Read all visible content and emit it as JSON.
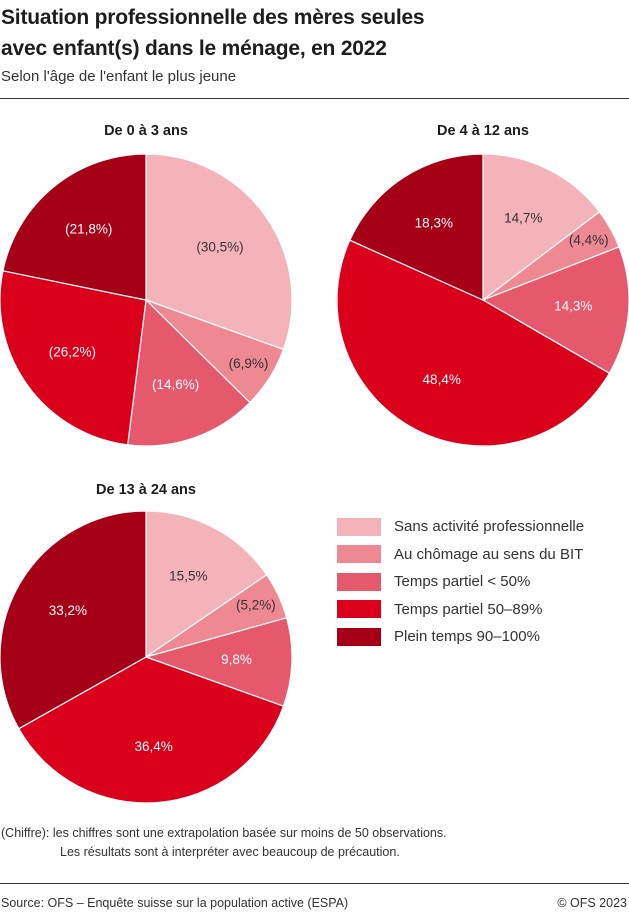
{
  "header": {
    "title_line1": "Situation professionnelle des mères seules",
    "title_line2": "avec enfant(s) dans le ménage, en 2022",
    "subtitle": "Selon l'âge de l'enfant le plus jeune"
  },
  "legend": [
    {
      "label": "Sans activité professionnelle",
      "color": "#F4B2B9"
    },
    {
      "label": "Au chômage au sens du BIT",
      "color": "#EE8893"
    },
    {
      "label": "Temps partiel < 50%",
      "color": "#E6586B"
    },
    {
      "label": "Temps partiel 50–89%",
      "color": "#DA001C"
    },
    {
      "label": "Plein temps 90–100%",
      "color": "#A50015"
    }
  ],
  "footer": {
    "note_line1": "(Chiffre): les chiffres sont une extrapolation basée sur moins de 50 observations.",
    "note_line2": "Les résultats sont à interpréter avec beaucoup de précaution.",
    "source": "Source: OFS – Enquête suisse sur la population active (ESPA)",
    "copyright": "© OFS 2023"
  },
  "chart_data": [
    {
      "type": "pie",
      "title": "De 0 à 3 ans",
      "categories": [
        "Sans activité professionnelle",
        "Au chômage au sens du BIT",
        "Temps partiel < 50%",
        "Temps partiel 50–89%",
        "Plein temps 90–100%"
      ],
      "values": [
        30.5,
        6.9,
        14.6,
        26.2,
        21.8
      ],
      "labels": [
        "(30,5%)",
        "(6,9%)",
        "(14,6%)",
        "(26,2%)",
        "(21,8%)"
      ],
      "low_reliability": [
        true,
        true,
        true,
        true,
        true
      ]
    },
    {
      "type": "pie",
      "title": "De 4 à 12 ans",
      "categories": [
        "Sans activité professionnelle",
        "Au chômage au sens du BIT",
        "Temps partiel < 50%",
        "Temps partiel 50–89%",
        "Plein temps 90–100%"
      ],
      "values": [
        14.7,
        4.4,
        14.3,
        48.4,
        18.3
      ],
      "labels": [
        "14,7%",
        "(4,4%)",
        "14,3%",
        "48,4%",
        "18,3%"
      ],
      "low_reliability": [
        false,
        true,
        false,
        false,
        false
      ]
    },
    {
      "type": "pie",
      "title": "De 13 à 24 ans",
      "categories": [
        "Sans activité professionnelle",
        "Au chômage au sens du BIT",
        "Temps partiel < 50%",
        "Temps partiel 50–89%",
        "Plein temps 90–100%"
      ],
      "values": [
        15.5,
        5.2,
        9.8,
        36.4,
        33.2
      ],
      "labels": [
        "15,5%",
        "(5,2%)",
        "9,8%",
        "36,4%",
        "33,2%"
      ],
      "low_reliability": [
        false,
        true,
        false,
        false,
        false
      ]
    }
  ]
}
